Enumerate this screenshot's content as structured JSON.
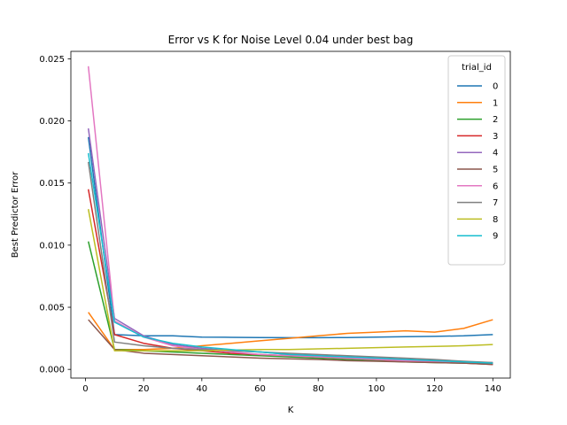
{
  "chart_data": {
    "type": "line",
    "title": "Error vs K for Noise Level 0.04 under best bag",
    "xlabel": "K",
    "ylabel": "Best Predictor Error",
    "xlim": [
      -5,
      146
    ],
    "ylim": [
      -0.0007,
      0.0256
    ],
    "x_ticks": [
      0,
      20,
      40,
      60,
      80,
      100,
      120,
      140
    ],
    "x_tick_labels": [
      "0",
      "20",
      "40",
      "60",
      "80",
      "100",
      "120",
      "140"
    ],
    "y_ticks": [
      0.0,
      0.005,
      0.01,
      0.015,
      0.02,
      0.025
    ],
    "y_tick_labels": [
      "0.000",
      "0.005",
      "0.010",
      "0.015",
      "0.020",
      "0.025"
    ],
    "grid": false,
    "legend": {
      "title": "trial_id",
      "placement": "top-right"
    },
    "x": [
      1,
      10,
      20,
      30,
      40,
      50,
      60,
      70,
      80,
      90,
      100,
      110,
      120,
      130,
      140
    ],
    "series": [
      {
        "name": "0",
        "color": "#1f77b4",
        "values": [
          0.0187,
          0.0028,
          0.0027,
          0.0027,
          0.0026,
          0.00258,
          0.00256,
          0.00255,
          0.00255,
          0.00256,
          0.0026,
          0.00263,
          0.00266,
          0.0027,
          0.0028
        ]
      },
      {
        "name": "1",
        "color": "#ff7f0e",
        "values": [
          0.0046,
          0.0016,
          0.0016,
          0.0017,
          0.0019,
          0.0021,
          0.0023,
          0.0025,
          0.0027,
          0.0029,
          0.003,
          0.0031,
          0.003,
          0.0033,
          0.004
        ]
      },
      {
        "name": "2",
        "color": "#2ca02c",
        "values": [
          0.0103,
          0.0016,
          0.0015,
          0.0014,
          0.0013,
          0.0012,
          0.0011,
          0.001,
          0.0009,
          0.0008,
          0.0007,
          0.0006,
          0.00055,
          0.0005,
          0.00045
        ]
      },
      {
        "name": "3",
        "color": "#d62728",
        "values": [
          0.0145,
          0.0028,
          0.0021,
          0.0017,
          0.0015,
          0.0013,
          0.0012,
          0.0011,
          0.001,
          0.0009,
          0.0008,
          0.0007,
          0.0006,
          0.0005,
          0.0004
        ]
      },
      {
        "name": "4",
        "color": "#9467bd",
        "values": [
          0.0194,
          0.0041,
          0.0027,
          0.002,
          0.0017,
          0.0015,
          0.0014,
          0.0012,
          0.0011,
          0.001,
          0.0009,
          0.0008,
          0.0007,
          0.0006,
          0.0005
        ]
      },
      {
        "name": "5",
        "color": "#8c564b",
        "values": [
          0.004,
          0.0016,
          0.0013,
          0.0012,
          0.0011,
          0.001,
          0.0009,
          0.00085,
          0.0008,
          0.0007,
          0.00065,
          0.0006,
          0.00055,
          0.0005,
          0.0004
        ]
      },
      {
        "name": "6",
        "color": "#e377c2",
        "values": [
          0.0244,
          0.0039,
          0.0026,
          0.0019,
          0.0016,
          0.0014,
          0.0012,
          0.0011,
          0.001,
          0.0009,
          0.0008,
          0.0007,
          0.00065,
          0.0006,
          0.00055
        ]
      },
      {
        "name": "7",
        "color": "#7f7f7f",
        "values": [
          0.0167,
          0.0022,
          0.0019,
          0.0017,
          0.0016,
          0.0015,
          0.0014,
          0.0013,
          0.0012,
          0.0011,
          0.001,
          0.0009,
          0.0008,
          0.00065,
          0.00055
        ]
      },
      {
        "name": "8",
        "color": "#bcbd22",
        "values": [
          0.0129,
          0.0015,
          0.0015,
          0.0015,
          0.0015,
          0.00155,
          0.0016,
          0.0016,
          0.00165,
          0.0017,
          0.00175,
          0.0018,
          0.00185,
          0.0019,
          0.002
        ]
      },
      {
        "name": "9",
        "color": "#17becf",
        "values": [
          0.0174,
          0.0038,
          0.0026,
          0.0021,
          0.0018,
          0.0016,
          0.0014,
          0.0012,
          0.0011,
          0.001,
          0.0009,
          0.0008,
          0.0007,
          0.0006,
          0.0005
        ]
      }
    ]
  }
}
